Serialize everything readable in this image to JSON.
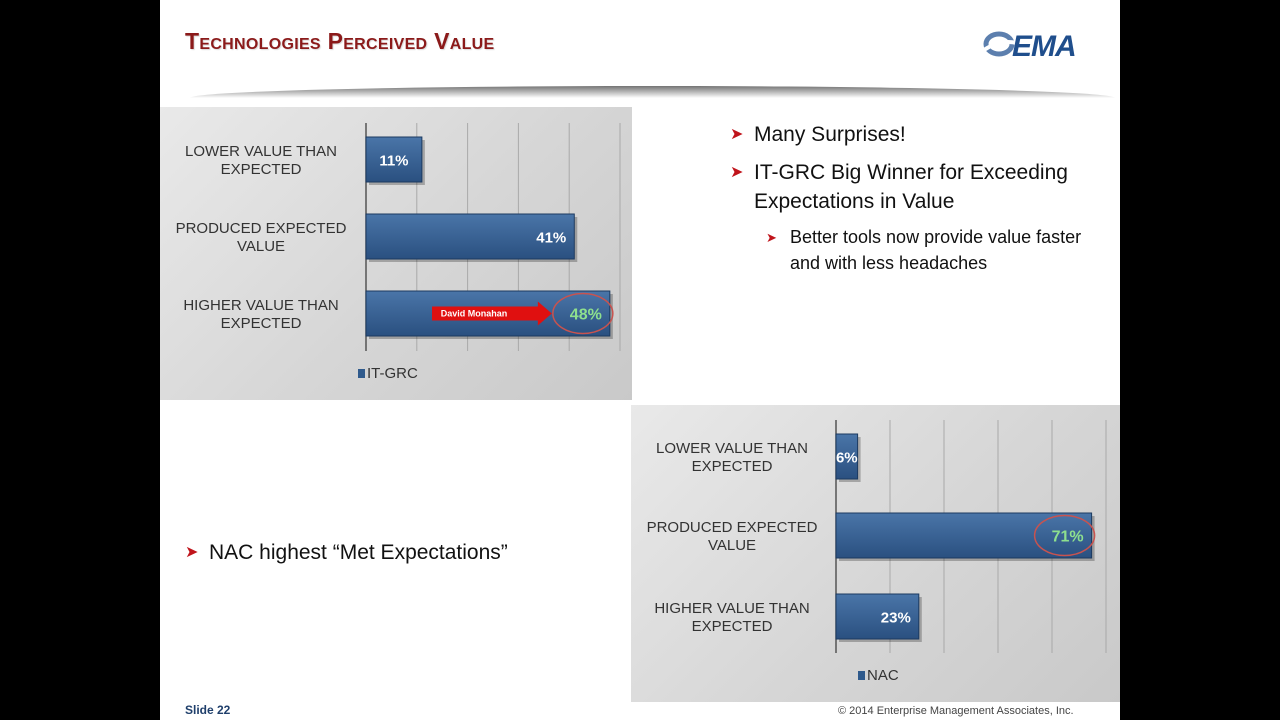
{
  "slide": {
    "title": "Technologies Perceived Value",
    "logo_text": "EMA",
    "slide_number": "Slide  22",
    "copyright": "© 2014 Enterprise Management Associates, Inc.",
    "bullets_top": [
      {
        "level": 1,
        "text": "Many Surprises!"
      },
      {
        "level": 1,
        "text": "IT-GRC Big Winner for Exceeding Expectations in Value"
      },
      {
        "level": 2,
        "text": "Better tools now provide value faster and with less headaches"
      }
    ],
    "bullet_mid": "NAC highest “Met Expectations”",
    "annotation_label": "David Monahan",
    "colors": {
      "bar": "#2f5a8c",
      "highlight_label": "#8ee08e",
      "arrow": "#c0141b",
      "title": "#8b1a1a"
    }
  },
  "chart_data": [
    {
      "type": "bar",
      "orientation": "horizontal",
      "categories": [
        "LOWER VALUE THAN EXPECTED",
        "PRODUCED EXPECTED VALUE",
        "HIGHER  VALUE THAN EXPECTED"
      ],
      "series": [
        {
          "name": "IT-GRC",
          "values": [
            11,
            41,
            48
          ]
        }
      ],
      "labels": [
        "11%",
        "41%",
        "48%"
      ],
      "highlight_index": 2,
      "xlim": [
        0,
        50
      ],
      "grid": true,
      "legend": "bottom-left"
    },
    {
      "type": "bar",
      "orientation": "horizontal",
      "categories": [
        "LOWER VALUE THAN EXPECTED",
        "PRODUCED EXPECTED VALUE",
        "HIGHER  VALUE THAN EXPECTED"
      ],
      "series": [
        {
          "name": "NAC",
          "values": [
            6,
            71,
            23
          ]
        }
      ],
      "labels": [
        "6%",
        "71%",
        "23%"
      ],
      "highlight_index": 1,
      "xlim": [
        0,
        75
      ],
      "grid": true,
      "legend": "bottom-left"
    }
  ]
}
